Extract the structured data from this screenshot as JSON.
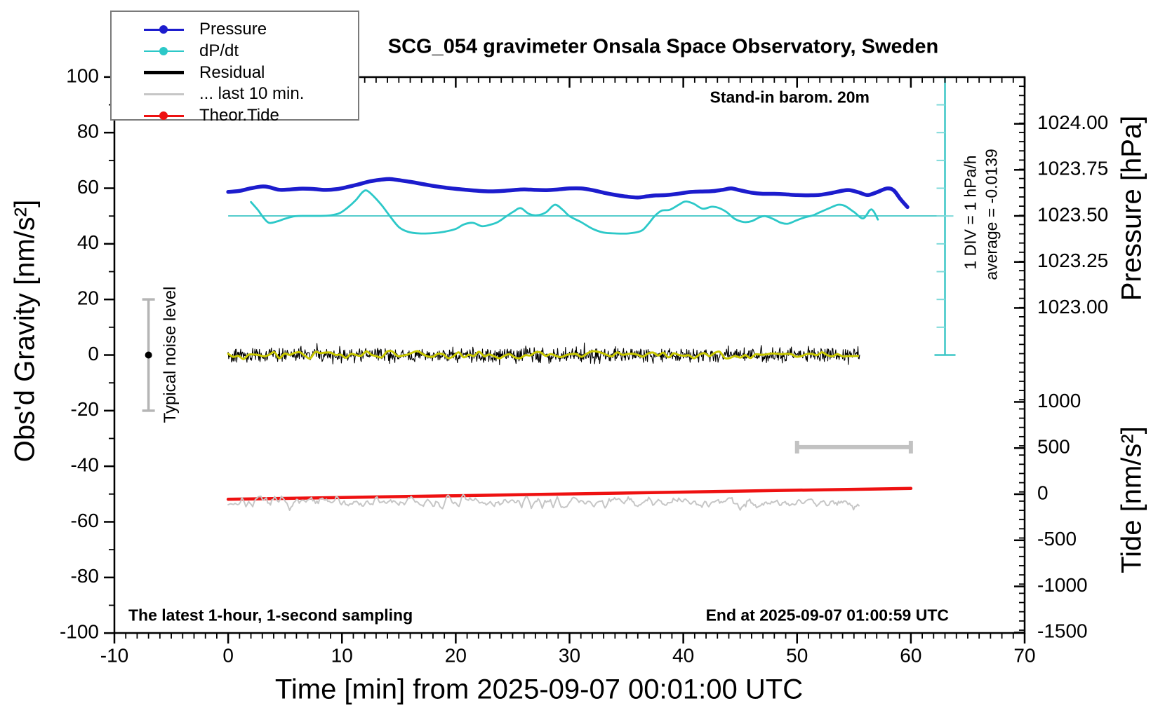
{
  "chart_data": {
    "type": "line",
    "title": "SCG_054 gravimeter Onsala Space Observatory, Sweden",
    "x_axis": {
      "label": "Time [min] from 2025-09-07 00:01:00 UTC",
      "min": -10,
      "max": 70,
      "major_step": 10,
      "minor_step": 1,
      "tick_labels": [
        "-10",
        "0",
        "10",
        "20",
        "30",
        "40",
        "50",
        "60",
        "70"
      ]
    },
    "left_axis": {
      "label": "Obs'd Gravity [nm/s²]",
      "min": -100,
      "max": 100,
      "major_step": 20,
      "minor_step": 10,
      "tick_labels": [
        "100",
        "80",
        "60",
        "40",
        "20",
        "0",
        "-20",
        "-40",
        "-60",
        "-80",
        "-100"
      ]
    },
    "pressure_axis": {
      "label": "Pressure [hPa]",
      "ticks": [
        1024.0,
        1023.75,
        1023.5,
        1023.25,
        1023.0
      ],
      "tick_labels": [
        "1024.00",
        "1023.75",
        "1023.50",
        "1023.25",
        "1023.00"
      ],
      "minor_step_hpa": 0.05
    },
    "tide_axis": {
      "label": "Tide [nm/s²]",
      "ticks": [
        1000,
        500,
        0,
        -500,
        -1000,
        -1500
      ],
      "tick_labels": [
        "1000",
        "500",
        "0",
        "-500",
        "-1000",
        "-1500"
      ],
      "minor_step": 100
    },
    "legend": [
      {
        "label": "Pressure",
        "color": "#1c1ccd",
        "lw": 3,
        "marker": true
      },
      {
        "label": "dP/dt",
        "color": "#2cc8c8",
        "lw": 2,
        "marker": true
      },
      {
        "label": "Residual",
        "color": "#000000",
        "lw": 5,
        "marker": false
      },
      {
        "label": "... last 10 min.",
        "color": "#c6c6c6",
        "lw": 3,
        "marker": false
      },
      {
        "label": "Theor.Tide",
        "color": "#ee1111",
        "lw": 3,
        "marker": true
      }
    ],
    "annotations": {
      "standin": "Stand-in barom. 20m",
      "div_label": "1 DIV = 1 hPa/h",
      "average_label": "average = -0.0139",
      "noise_label": "Typical noise level",
      "sampling_note": "The latest 1-hour, 1-second sampling",
      "end_note": "End at 2025-09-07 01:00:59 UTC"
    },
    "series": {
      "pressure": {
        "name": "Pressure",
        "color": "#1c1ccd",
        "unit": "hPa",
        "axis": "pressure",
        "points": [
          [
            0,
            1023.63
          ],
          [
            1,
            1023.636
          ],
          [
            2,
            1023.65
          ],
          [
            3,
            1023.66
          ],
          [
            3.6,
            1023.656
          ],
          [
            4.5,
            1023.642
          ],
          [
            5.5,
            1023.644
          ],
          [
            6.5,
            1023.648
          ],
          [
            7.5,
            1023.646
          ],
          [
            8.5,
            1023.641
          ],
          [
            9.5,
            1023.645
          ],
          [
            10.5,
            1023.657
          ],
          [
            11.5,
            1023.672
          ],
          [
            12.5,
            1023.688
          ],
          [
            13.5,
            1023.697
          ],
          [
            14.2,
            1023.7
          ],
          [
            15,
            1023.694
          ],
          [
            16,
            1023.685
          ],
          [
            17,
            1023.674
          ],
          [
            18,
            1023.663
          ],
          [
            19,
            1023.654
          ],
          [
            20,
            1023.647
          ],
          [
            21,
            1023.641
          ],
          [
            22,
            1023.636
          ],
          [
            23,
            1023.633
          ],
          [
            24,
            1023.635
          ],
          [
            25,
            1023.64
          ],
          [
            26,
            1023.644
          ],
          [
            27,
            1023.641
          ],
          [
            28,
            1023.64
          ],
          [
            29,
            1023.644
          ],
          [
            30,
            1023.649
          ],
          [
            31,
            1023.649
          ],
          [
            32,
            1023.64
          ],
          [
            33,
            1023.626
          ],
          [
            34,
            1023.614
          ],
          [
            35,
            1023.605
          ],
          [
            36,
            1023.6
          ],
          [
            36.8,
            1023.606
          ],
          [
            37.6,
            1023.611
          ],
          [
            38.5,
            1023.613
          ],
          [
            39.5,
            1023.62
          ],
          [
            40.5,
            1023.629
          ],
          [
            41.5,
            1023.632
          ],
          [
            42.5,
            1023.634
          ],
          [
            43.5,
            1023.642
          ],
          [
            44.2,
            1023.649
          ],
          [
            45,
            1023.639
          ],
          [
            46,
            1023.626
          ],
          [
            47,
            1023.62
          ],
          [
            48,
            1023.62
          ],
          [
            49,
            1023.617
          ],
          [
            50,
            1023.613
          ],
          [
            51,
            1023.612
          ],
          [
            52,
            1023.614
          ],
          [
            53,
            1023.624
          ],
          [
            54,
            1023.637
          ],
          [
            54.6,
            1023.64
          ],
          [
            55.4,
            1023.628
          ],
          [
            56.2,
            1023.613
          ],
          [
            57,
            1023.628
          ],
          [
            57.9,
            1023.649
          ],
          [
            58.5,
            1023.638
          ],
          [
            59.1,
            1023.59
          ],
          [
            59.7,
            1023.548
          ]
        ]
      },
      "dpdt": {
        "name": "dP/dt",
        "color": "#2cc8c8",
        "unit": "hPa/h",
        "zero_line_hpa": 1023.5,
        "points": [
          [
            2,
            0.5
          ],
          [
            2.6,
            0.22
          ],
          [
            3.1,
            -0.06
          ],
          [
            3.6,
            -0.25
          ],
          [
            4.3,
            -0.2
          ],
          [
            5,
            -0.1
          ],
          [
            5.9,
            -0.01
          ],
          [
            7,
            0.0
          ],
          [
            8,
            0.0
          ],
          [
            9,
            0.02
          ],
          [
            9.8,
            0.1
          ],
          [
            10.5,
            0.3
          ],
          [
            11.2,
            0.56
          ],
          [
            11.8,
            0.85
          ],
          [
            12.2,
            0.91
          ],
          [
            12.8,
            0.7
          ],
          [
            13.5,
            0.38
          ],
          [
            14.2,
            0.0
          ],
          [
            15,
            -0.4
          ],
          [
            15.8,
            -0.57
          ],
          [
            16.8,
            -0.63
          ],
          [
            18,
            -0.62
          ],
          [
            19,
            -0.57
          ],
          [
            20,
            -0.47
          ],
          [
            20.7,
            -0.31
          ],
          [
            21.5,
            -0.25
          ],
          [
            22.3,
            -0.37
          ],
          [
            23,
            -0.32
          ],
          [
            23.7,
            -0.22
          ],
          [
            24.5,
            0.0
          ],
          [
            25.1,
            0.16
          ],
          [
            25.7,
            0.28
          ],
          [
            26.4,
            0.08
          ],
          [
            27.1,
            0.02
          ],
          [
            27.9,
            0.12
          ],
          [
            28.7,
            0.4
          ],
          [
            29.4,
            0.22
          ],
          [
            30,
            -0.01
          ],
          [
            31,
            -0.22
          ],
          [
            32,
            -0.46
          ],
          [
            33,
            -0.6
          ],
          [
            34,
            -0.63
          ],
          [
            35.2,
            -0.63
          ],
          [
            36.3,
            -0.54
          ],
          [
            36.9,
            -0.3
          ],
          [
            37.5,
            0.0
          ],
          [
            38.1,
            0.19
          ],
          [
            38.8,
            0.22
          ],
          [
            39.6,
            0.4
          ],
          [
            40.2,
            0.52
          ],
          [
            40.9,
            0.44
          ],
          [
            41.7,
            0.26
          ],
          [
            42.5,
            0.33
          ],
          [
            43.1,
            0.29
          ],
          [
            43.8,
            0.14
          ],
          [
            44.5,
            -0.1
          ],
          [
            45.3,
            -0.22
          ],
          [
            46,
            -0.19
          ],
          [
            46.7,
            -0.05
          ],
          [
            47.2,
            -0.01
          ],
          [
            47.9,
            -0.11
          ],
          [
            48.6,
            -0.25
          ],
          [
            49.2,
            -0.28
          ],
          [
            49.9,
            -0.17
          ],
          [
            50.7,
            -0.05
          ],
          [
            51.4,
            0.02
          ],
          [
            52.1,
            0.15
          ],
          [
            52.9,
            0.29
          ],
          [
            53.6,
            0.4
          ],
          [
            54.2,
            0.36
          ],
          [
            55,
            0.14
          ],
          [
            55.8,
            -0.09
          ],
          [
            56.4,
            0.21
          ],
          [
            56.7,
            0.18
          ],
          [
            57.1,
            -0.13
          ]
        ]
      },
      "residual": {
        "name": "Residual",
        "color": "#000000",
        "unit": "nm/s²",
        "center": 0,
        "noise_sd": 1.5,
        "t_start": 0,
        "t_end": 55.5,
        "smoothed_color": "#c9c900",
        "smoothed_sd": 0.8,
        "seed": 42
      },
      "residual_last10": {
        "name": "... last 10 min.",
        "color": "#c6c6c6",
        "unit": "nm/s² (gravity axis)",
        "center": -53,
        "noise_sd": 1.6,
        "t_start": 0,
        "t_end": 55.5,
        "seed": 7
      },
      "theor_tide": {
        "name": "Theor.Tide",
        "color": "#ee1111",
        "unit": "nm/s² (tide axis)",
        "points": [
          [
            0,
            -55
          ],
          [
            10,
            -36
          ],
          [
            20,
            -17
          ],
          [
            30,
            3
          ],
          [
            40,
            23
          ],
          [
            50,
            43
          ],
          [
            60,
            62
          ]
        ]
      }
    },
    "noise_marker": {
      "t": -7,
      "center": 0,
      "half_range": 20
    },
    "last10_window": {
      "t0": 50,
      "t1": 60,
      "tide_level": 510
    },
    "div_bar": {
      "t": 63,
      "top_gravity": 100,
      "bottom_gravity": 0,
      "nms2_per_div": 10
    }
  }
}
